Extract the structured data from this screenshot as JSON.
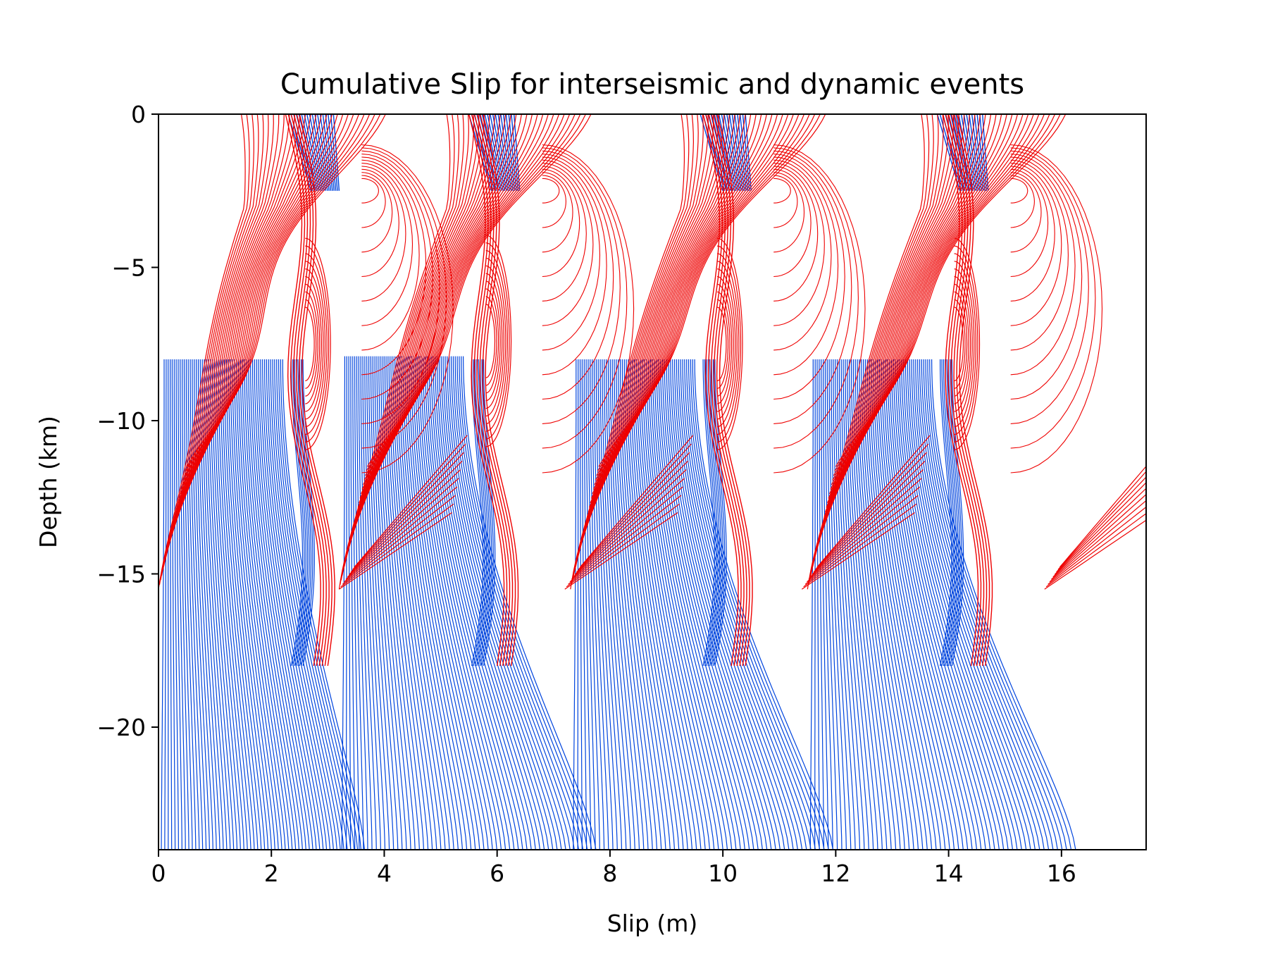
{
  "chart_data": {
    "type": "line",
    "title": "Cumulative Slip for interseismic and dynamic events",
    "xlabel": "Slip (m)",
    "ylabel": "Depth (km)",
    "xlim": [
      0,
      17.5
    ],
    "ylim": [
      -24,
      0
    ],
    "xticks": [
      0,
      2,
      4,
      6,
      8,
      10,
      12,
      14,
      16
    ],
    "xtick_labels": [
      "0",
      "2",
      "4",
      "6",
      "8",
      "10",
      "12",
      "14",
      "16"
    ],
    "yticks": [
      0,
      -5,
      -10,
      -15,
      -20
    ],
    "ytick_labels": [
      "0",
      "−5",
      "−10",
      "−15",
      "−20"
    ],
    "grid": false,
    "legend": "none",
    "colors": {
      "interseismic": "#0044dd",
      "dynamic": "#ee0000",
      "axes": "#000000",
      "background": "#ffffff"
    },
    "cycles": [
      {
        "base_slip": 0.0,
        "slip_deep_max": 3.2,
        "nucleation_depth": -8.0,
        "coseismic_slip": 3.3,
        "dynamic_limit_depth": -18.0
      },
      {
        "base_slip": 3.2,
        "slip_deep_max": 7.3,
        "nucleation_depth": -7.9,
        "coseismic_slip": 4.1,
        "dynamic_limit_depth": -18.0
      },
      {
        "base_slip": 7.3,
        "slip_deep_max": 11.5,
        "nucleation_depth": -8.0,
        "coseismic_slip": 4.2,
        "dynamic_limit_depth": -18.0
      },
      {
        "base_slip": 11.5,
        "slip_deep_max": 15.8,
        "nucleation_depth": -8.0,
        "coseismic_slip": 4.3,
        "dynamic_limit_depth": -18.0
      }
    ],
    "series": [
      {
        "kind": "interseismic",
        "note_units": "slip in m vs depth in km",
        "sample_profiles": [
          {
            "depth": [
              -24,
              -20,
              -16,
              -13,
              -10,
              -8.2
            ],
            "slip": [
              0.05,
              0.3,
              0.6,
              1.0,
              1.6,
              2.1
            ]
          },
          {
            "depth": [
              -24,
              -20,
              -16,
              -13,
              -10,
              -8.0
            ],
            "slip": [
              4.8,
              4.9,
              5.1,
              5.3,
              5.6,
              5.7
            ]
          },
          {
            "depth": [
              -24,
              -20,
              -16,
              -13,
              -10,
              -8.0
            ],
            "slip": [
              8.9,
              9.0,
              9.2,
              9.5,
              9.8,
              10.0
            ]
          },
          {
            "depth": [
              -24,
              -20,
              -16,
              -13,
              -10,
              -8.0
            ],
            "slip": [
              13.0,
              13.1,
              13.3,
              13.6,
              13.9,
              14.2
            ]
          }
        ]
      },
      {
        "kind": "dynamic",
        "note_units": "slip in m vs depth in km",
        "sample_profiles": [
          {
            "depth": [
              -15,
              -12,
              -9,
              -6,
              -4,
              -2,
              0
            ],
            "slip": [
              0.0,
              0.5,
              1.3,
              1.9,
              2.3,
              2.6,
              2.3
            ]
          },
          {
            "depth": [
              -15.7,
              -12,
              -9,
              -6,
              -4,
              -2,
              0
            ],
            "slip": [
              4.4,
              4.9,
              5.6,
              6.1,
              6.3,
              6.7,
              6.2
            ]
          },
          {
            "depth": [
              -15.7,
              -12,
              -9,
              -6,
              -4,
              -2,
              0
            ],
            "slip": [
              8.2,
              8.9,
              9.7,
              10.4,
              10.9,
              11.5,
              10.9
            ]
          },
          {
            "depth": [
              -15.8,
              -12,
              -9,
              -6,
              -4,
              -2,
              0
            ],
            "slip": [
              12.3,
              13.0,
              13.9,
              14.7,
              15.1,
              15.8,
              15.0
            ]
          }
        ]
      }
    ]
  }
}
